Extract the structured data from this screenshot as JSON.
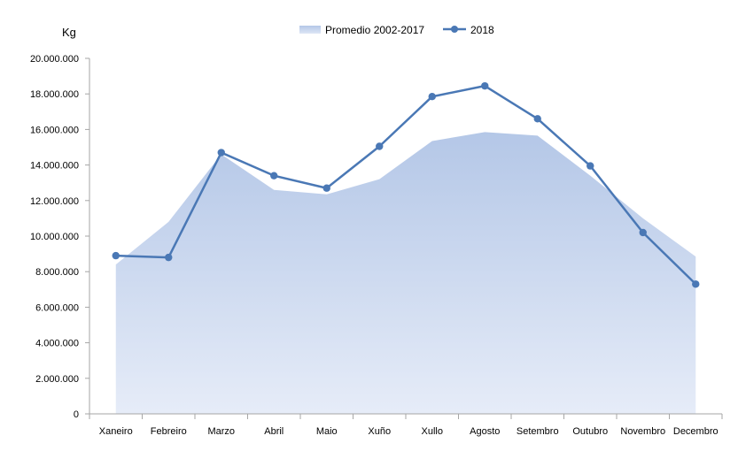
{
  "chart_data": {
    "type": "area+line",
    "ylabel": "Kg",
    "ylim": [
      0,
      20000000
    ],
    "yticks": [
      "0",
      "2.000.000",
      "4.000.000",
      "6.000.000",
      "8.000.000",
      "10.000.000",
      "12.000.000",
      "14.000.000",
      "16.000.000",
      "18.000.000",
      "20.000.000"
    ],
    "ytick_values": [
      0,
      2000000,
      4000000,
      6000000,
      8000000,
      10000000,
      12000000,
      14000000,
      16000000,
      18000000,
      20000000
    ],
    "categories": [
      "Xaneiro",
      "Febreiro",
      "Marzo",
      "Abril",
      "Maio",
      "Xuño",
      "Xullo",
      "Agosto",
      "Setembro",
      "Outubro",
      "Novembro",
      "Decembro"
    ],
    "legend_position": "top",
    "grid": false,
    "series": [
      {
        "name": "Promedio 2002-2017",
        "kind": "area",
        "color": "#b4c7e7",
        "values": [
          8400000,
          10800000,
          14600000,
          12600000,
          12350000,
          13200000,
          15350000,
          15850000,
          15650000,
          13400000,
          11000000,
          8850000
        ]
      },
      {
        "name": "2018",
        "kind": "line",
        "color": "#4a78b5",
        "values": [
          8900000,
          8800000,
          14700000,
          13400000,
          12700000,
          15050000,
          17850000,
          18450000,
          16600000,
          13950000,
          10200000,
          7300000
        ]
      }
    ]
  }
}
